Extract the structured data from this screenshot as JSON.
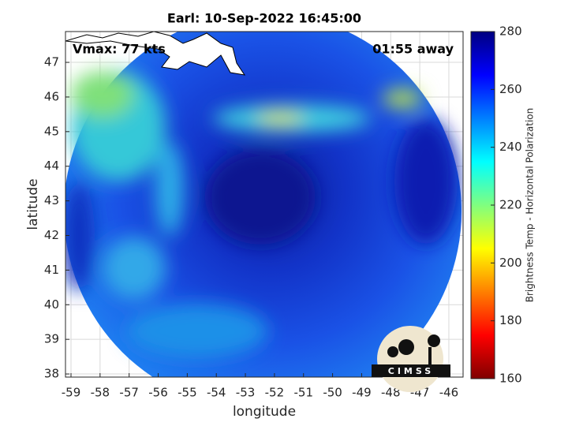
{
  "chart_data": {
    "type": "map",
    "title": "Earl: 10-Sep-2022 16:45:00",
    "xlabel": "longitude",
    "ylabel": "latitude",
    "xlim": [
      -59.19,
      -45.51
    ],
    "ylim": [
      37.91,
      47.89
    ],
    "xticks": [
      -59,
      -58,
      -57,
      -56,
      -55,
      -54,
      -53,
      -52,
      -51,
      -50,
      -49,
      -48,
      -47,
      -46
    ],
    "yticks": [
      38,
      39,
      40,
      41,
      42,
      43,
      44,
      45,
      46,
      47
    ],
    "grid": true,
    "annotations": [
      "Vmax: 77 kts",
      "01:55 away"
    ],
    "logo": "CIMSS",
    "colorbar": {
      "label": "Brightness Temp - Horizontal Polarization",
      "lim": [
        160,
        280
      ],
      "ticks": [
        160,
        180,
        200,
        220,
        240,
        260,
        280
      ]
    }
  }
}
